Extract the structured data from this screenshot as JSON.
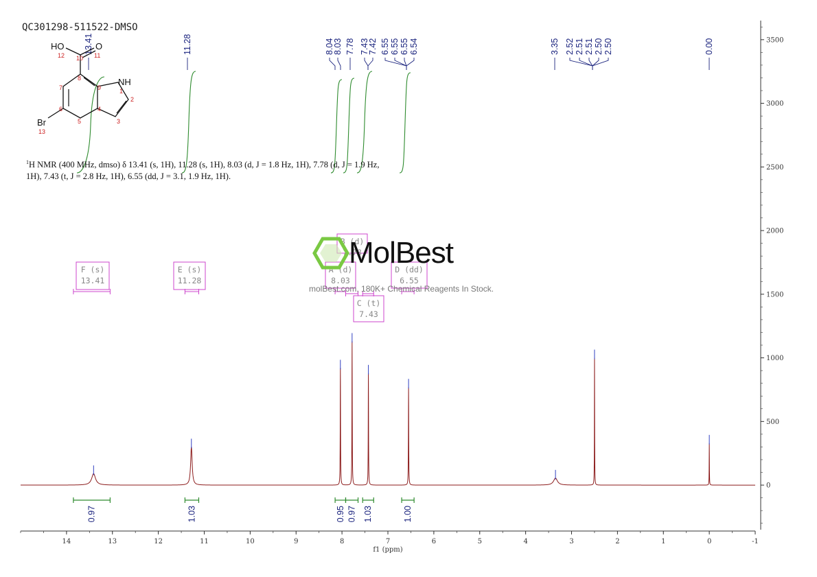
{
  "sample_title": "QC301298-511522-DMSO",
  "nmr_description": {
    "prefix": "H NMR (400 MHz, dmso) δ 13.41 (s, 1H), 11.28 (s, 1H), 8.03 (d, J = 1.8 Hz, 1H), 7.78 (d, J = 1.9 Hz,",
    "line2": "1H), 7.43 (t, J = 2.8 Hz, 1H), 6.55 (dd, J = 3.1, 1.9 Hz, 1H).",
    "superscript": "1"
  },
  "watermark": {
    "brand": "MolBest",
    "tagline": "molBest.com, 180K+ Chemical Reagents In Stock."
  },
  "molecule": {
    "atoms": [
      {
        "label": "HO",
        "num": "12"
      },
      {
        "label": "O",
        "num": "11"
      },
      {
        "label": "NH",
        "num": "1"
      },
      {
        "label": "Br",
        "num": "13"
      }
    ],
    "ring_numbers": [
      "10",
      "8",
      "7",
      "9",
      "2",
      "6",
      "4",
      "5",
      "3"
    ]
  },
  "chart_data": {
    "type": "line",
    "xlabel": "f1 (ppm)",
    "xlim": [
      15,
      -1
    ],
    "ylim": [
      -350,
      3650
    ],
    "x_ticks": [
      "14",
      "13",
      "12",
      "11",
      "10",
      "9",
      "8",
      "7",
      "6",
      "5",
      "4",
      "3",
      "2",
      "1",
      "0",
      "-1"
    ],
    "y_ticks": [
      3500,
      3000,
      2500,
      2000,
      1500,
      1000,
      500,
      0
    ],
    "peaks": [
      {
        "shift": 13.41,
        "height": 90,
        "width": 0.05
      },
      {
        "shift": 11.28,
        "height": 300,
        "width": 0.02
      },
      {
        "shift": 8.035,
        "height": 920,
        "width": 0.004
      },
      {
        "shift": 7.78,
        "height": 1130,
        "width": 0.004
      },
      {
        "shift": 7.425,
        "height": 880,
        "width": 0.004
      },
      {
        "shift": 6.55,
        "height": 770,
        "width": 0.004
      },
      {
        "shift": 3.35,
        "height": 55,
        "width": 0.05
      },
      {
        "shift": 2.5,
        "height": 1000,
        "width": 0.003
      },
      {
        "shift": 0.0,
        "height": 330,
        "width": 0.003
      }
    ],
    "peak_labels": {
      "group_13": [
        "13.41"
      ],
      "group_11": [
        "11.28"
      ],
      "group_aromatic": [
        "8.04",
        "8.03",
        "7.78",
        "7.43",
        "7.42",
        "6.55",
        "6.55",
        "6.55",
        "6.54"
      ],
      "group_water": [
        "3.35"
      ],
      "group_dmso": [
        "2.52",
        "2.51",
        "2.51",
        "2.50",
        "2.50"
      ],
      "group_tms": [
        "0.00"
      ]
    },
    "multiplets": [
      {
        "letter": "F (s)",
        "shift": "13.41",
        "range": [
          13.85,
          13.05
        ]
      },
      {
        "letter": "E (s)",
        "shift": "11.28",
        "range": [
          11.42,
          11.12
        ]
      },
      {
        "letter": "A (d)",
        "shift": "8.03",
        "range": [
          8.15,
          7.92
        ]
      },
      {
        "letter": "B (d)",
        "shift": "7.78",
        "range": [
          7.92,
          7.65
        ]
      },
      {
        "letter": "C (t)",
        "shift": "7.43",
        "range": [
          7.55,
          7.31
        ]
      },
      {
        "letter": "D (dd)",
        "shift": "6.55",
        "range": [
          6.7,
          6.43
        ]
      }
    ],
    "integrals": [
      {
        "value": "0.97",
        "range": [
          13.85,
          13.05
        ]
      },
      {
        "value": "1.03",
        "range": [
          11.42,
          11.12
        ]
      },
      {
        "value": "0.95",
        "range": [
          8.15,
          7.92
        ]
      },
      {
        "value": "0.97",
        "range": [
          7.92,
          7.65
        ]
      },
      {
        "value": "1.03",
        "range": [
          7.55,
          7.31
        ]
      },
      {
        "value": "1.00",
        "range": [
          6.7,
          6.43
        ]
      }
    ],
    "colors": {
      "spectrum": "#8b1a1a",
      "peak_label": "#1a237e",
      "integral_curve": "#2e8b2e",
      "multiplet_box": "#cc44cc",
      "axis": "#333333",
      "watermark_green": "#7ac943"
    }
  }
}
